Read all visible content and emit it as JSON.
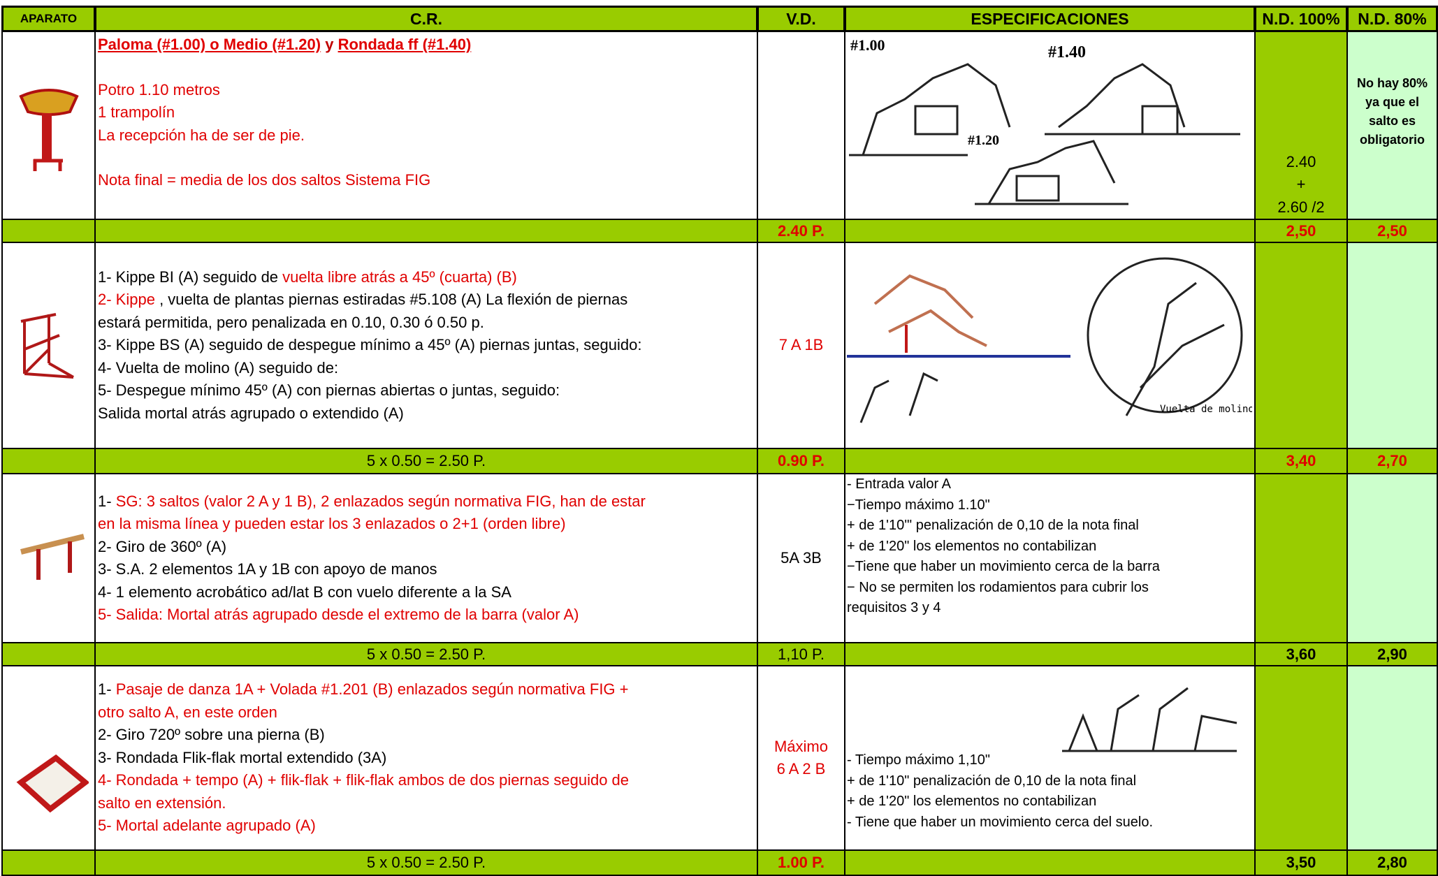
{
  "header": [
    "APARATO",
    "C.R.",
    "V.D.",
    "ESPECIFICACIONES",
    "N.D. 100%",
    "N.D. 80%"
  ],
  "rows": [
    {
      "cr": [
        [
          [
            {
              "text": "Paloma (#1.00) o Medio (#1.20)",
              "color": "#e00000",
              "bold": true,
              "underline": true
            },
            {
              "text": " y ",
              "color": "#c00000",
              "bold": true
            },
            {
              "text": "Rondada ff (#1.40)",
              "color": "#e00000",
              "bold": true,
              "underline": true
            }
          ]
        ],
        [
          [
            {
              "text": "Potro 1.10 metros",
              "color": "#e00000"
            }
          ],
          [
            {
              "text": "1 trampolín",
              "color": "#e00000"
            }
          ],
          [
            {
              "text": "La recepción  ha de ser  de pie.",
              "color": "#e00000"
            }
          ]
        ],
        [
          [
            {
              "text": "Nota final = media de los dos saltos Sistema FIG",
              "color": "#e00000"
            }
          ]
        ]
      ],
      "figure_labels": [
        "#1.00",
        "#1.40",
        "#1.20"
      ],
      "nd100": [
        "2.40",
        "+",
        "2.60 /2"
      ],
      "nd80": "No hay 80% ya que el salto es obligatorio",
      "summary": {
        "vd": {
          "text": "2.40 P.",
          "color": "#e00000",
          "bold": true
        },
        "nd100": {
          "text": "2,50",
          "color": "#e00000",
          "bold": true
        },
        "nd80": {
          "text": "2,50",
          "color": "#e00000",
          "bold": true
        }
      }
    },
    {
      "cr": [
        [
          [
            {
              "text": "1- Kippe BI (A) seguido de ",
              "color": "#000000"
            },
            {
              "text": "vuelta libre atrás a 45º (cuarta) (B)",
              "color": "#e00000"
            }
          ],
          [
            {
              "text": "2- Kippe",
              "color": "#e00000"
            },
            {
              "text": " , vuelta de plantas piernas estiradas #5.108 (A) La flexión de piernas",
              "color": "#000000"
            }
          ],
          [
            {
              "text": "estará permitida, pero penalizada en 0.10, 0.30 ó 0.50 p.",
              "color": "#000000"
            }
          ],
          [
            {
              "text": "3- Kippe BS (A) seguido de despegue mínimo a 45º (A) piernas juntas, seguido:",
              "color": "#000000"
            }
          ],
          [
            {
              "text": "4- Vuelta de molino (A) seguido de:",
              "color": "#000000"
            }
          ],
          [
            {
              "text": "5- Despegue mínimo 45º (A) con piernas abiertas o juntas, seguido:",
              "color": "#000000"
            }
          ],
          [
            {
              "text": "Salida mortal atrás agrupado o extendido (A)",
              "color": "#000000"
            }
          ]
        ]
      ],
      "vd": [
        {
          "text": "7 A 1B",
          "color": "#e00000"
        }
      ],
      "figure_labels": [
        "Vuelta de molino"
      ],
      "summary": {
        "cr": {
          "text": "5 x 0.50  = 2.50 P.",
          "color": "#000000"
        },
        "vd": {
          "text": "0.90 P.",
          "color": "#e00000",
          "bold": true
        },
        "nd100": {
          "text": "3,40",
          "color": "#e00000",
          "bold": true
        },
        "nd80": {
          "text": "2,70",
          "color": "#e00000",
          "bold": true
        }
      }
    },
    {
      "cr": [
        [
          [
            {
              "text": "1- ",
              "color": "#000000"
            },
            {
              "text": "SG: 3 saltos (valor 2 A y 1 B), 2 enlazados según normativa FIG, han de estar",
              "color": "#e00000"
            }
          ],
          [
            {
              "text": "en la misma línea y pueden estar los 3 enlazados o 2+1 (orden libre)",
              "color": "#e00000"
            }
          ],
          [
            {
              "text": "2- Giro de 360º (A)",
              "color": "#000000"
            }
          ],
          [
            {
              "text": "3- S.A. 2 elementos 1A y 1B con apoyo de manos",
              "color": "#000000"
            }
          ],
          [
            {
              "text": "4- 1 elemento acrobático ad/lat  B con vuelo diferente a la SA",
              "color": "#000000"
            }
          ],
          [
            {
              "text": "5- Salida: Mortal atrás agrupado desde el extremo de la barra (valor A)",
              "color": "#e00000"
            }
          ]
        ]
      ],
      "vd": [
        {
          "text": "5A 3B",
          "color": "#000000"
        }
      ],
      "spec": [
        "- Entrada valor A",
        "−Tiempo máximo 1.10\"",
        "+ de 1'10'\" penalización de 0,10 de la nota final",
        "+ de 1'20\" los elementos no contabilizan",
        "−Tiene que haber un movimiento cerca de la barra",
        "− No se permiten los rodamientos para cubrir los",
        "requisitos 3 y 4"
      ],
      "summary": {
        "cr": {
          "text": "5 x 0.50  = 2.50 P.",
          "color": "#000000"
        },
        "vd": {
          "text": "1,10 P.",
          "color": "#000000"
        },
        "nd100": {
          "text": "3,60",
          "color": "#000000",
          "bold": true
        },
        "nd80": {
          "text": "2,90",
          "color": "#000000",
          "bold": true
        }
      }
    },
    {
      "cr": [
        [
          [
            {
              "text": "1- ",
              "color": "#000000"
            },
            {
              "text": "Pasaje de danza 1A + Volada #1.201 (B) enlazados según normativa FIG +",
              "color": "#e00000"
            }
          ],
          [
            {
              "text": "otro salto A, en este orden",
              "color": "#e00000"
            }
          ],
          [
            {
              "text": "2- Giro 720º sobre una pierna (B)",
              "color": "#000000"
            }
          ],
          [
            {
              "text": "3- Rondada Flik-flak mortal extendido (3A)",
              "color": "#000000"
            }
          ],
          [
            {
              "text": "4- Rondada + tempo (A) + flik-flak + flik-flak ambos de dos piernas seguido de",
              "color": "#e00000"
            }
          ],
          [
            {
              "text": "salto en extensión.",
              "color": "#e00000"
            }
          ],
          [
            {
              "text": "5- Mortal adelante agrupado (A)",
              "color": "#e00000"
            }
          ]
        ]
      ],
      "vd": [
        {
          "text": "Máximo",
          "color": "#e00000"
        },
        {
          "text": "6 A 2 B",
          "color": "#e00000"
        }
      ],
      "spec": [
        "- Tiempo máximo 1,10\"",
        "+ de 1'10\" penalización de 0,10 de la nota final",
        "+ de 1'20\" los elementos no contabilizan",
        "- Tiene que haber un movimiento cerca del suelo."
      ],
      "summary": {
        "cr": {
          "text": "5 x 0.50  = 2.50 P.",
          "color": "#000000"
        },
        "vd": {
          "text": "1.00 P.",
          "color": "#e00000",
          "bold": true
        },
        "nd100": {
          "text": "3,50",
          "color": "#000000",
          "bold": true
        },
        "nd80": {
          "text": "2,80",
          "color": "#000000",
          "bold": true
        }
      }
    }
  ]
}
